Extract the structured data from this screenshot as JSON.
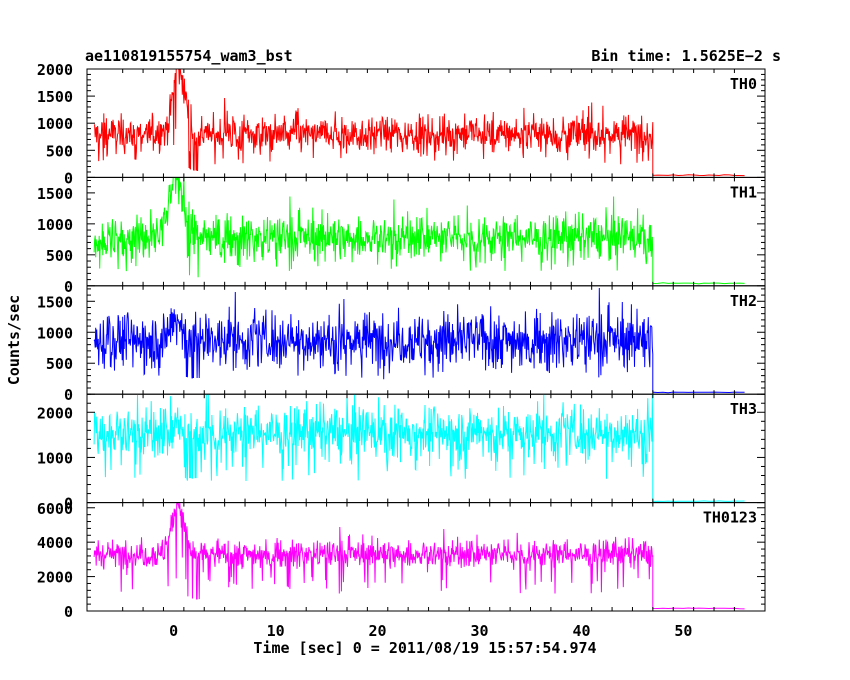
{
  "chart_data": {
    "type": "line",
    "title": "ae110819155754_wam3_bst",
    "bin_time": "Bin time: 1.5625E−2 s",
    "xlabel": "Time [sec] 0 = 2011/08/19 15:57:54.974",
    "ylabel": "Counts/sec",
    "xlim": [
      -8.5,
      58
    ],
    "x_ticks": [
      0,
      10,
      20,
      30,
      40,
      50
    ],
    "x_tick_labels": [
      "0",
      "10",
      "20",
      "30",
      "40",
      "50"
    ],
    "grid": false,
    "panels": [
      {
        "name": "TH0",
        "color": "#ff0000",
        "ylim": [
          0,
          2000
        ],
        "y_ticks": [
          0,
          500,
          1000,
          1500,
          2000
        ],
        "y_tick_labels": [
          "0",
          "500",
          "1000",
          "1500",
          "2000"
        ],
        "data_range": [
          -7.8,
          47
        ],
        "baseline": 800,
        "noise": 230,
        "peak": {
          "x": 0.5,
          "y": 2000,
          "width": 0.6
        },
        "dip_after_peak": 0.45,
        "tail_level": 40,
        "tail_end": 56
      },
      {
        "name": "TH1",
        "color": "#00ff00",
        "ylim": [
          0,
          1750
        ],
        "y_ticks": [
          0,
          500,
          1000,
          1500
        ],
        "y_tick_labels": [
          "0",
          "500",
          "1000",
          "1500"
        ],
        "data_range": [
          -7.8,
          47
        ],
        "baseline": 780,
        "noise": 230,
        "peak": {
          "x": 0.3,
          "y": 1750,
          "width": 0.7
        },
        "dip_after_peak": 0.5,
        "tail_level": 40,
        "tail_end": 56
      },
      {
        "name": "TH2",
        "color": "#0000ff",
        "ylim": [
          0,
          1750
        ],
        "y_ticks": [
          0,
          500,
          1000,
          1500
        ],
        "y_tick_labels": [
          "0",
          "500",
          "1000",
          "1500"
        ],
        "data_range": [
          -7.8,
          47
        ],
        "baseline": 880,
        "noise": 290,
        "peak": {
          "x": 0.3,
          "y": 1200,
          "width": 0.5
        },
        "dip_after_peak": 0.85,
        "tail_level": 30,
        "tail_end": 56
      },
      {
        "name": "TH3",
        "color": "#00ffff",
        "ylim": [
          0,
          2400
        ],
        "y_ticks": [
          0,
          1000,
          2000
        ],
        "y_tick_labels": [
          "0",
          "1000",
          "2000"
        ],
        "data_range": [
          -7.8,
          47
        ],
        "baseline": 1550,
        "noise": 380,
        "peak": {
          "x": 0.3,
          "y": 1700,
          "width": 0.3
        },
        "dip_after_peak": 1.0,
        "tail_level": 30,
        "tail_end": 56
      },
      {
        "name": "TH0123",
        "color": "#ff00ff",
        "ylim": [
          0,
          6300
        ],
        "y_ticks": [
          0,
          2000,
          4000,
          6000
        ],
        "y_tick_labels": [
          "0",
          "2000",
          "4000",
          "6000"
        ],
        "data_range": [
          -7.8,
          47
        ],
        "baseline": 3300,
        "noise": 550,
        "peak": {
          "x": 0.4,
          "y": 6300,
          "width": 0.6
        },
        "dip_after_peak": 0.6,
        "tail_level": 150,
        "tail_end": 56
      }
    ]
  }
}
